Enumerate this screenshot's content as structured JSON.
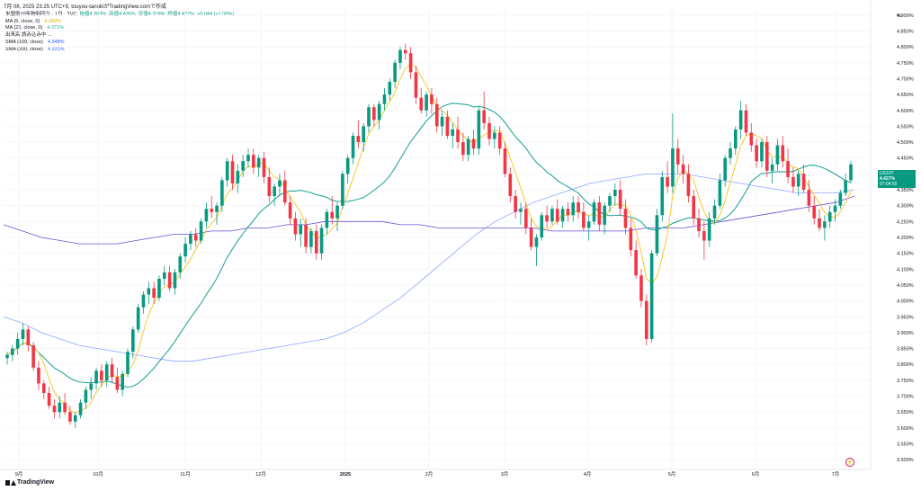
{
  "header": {
    "timestamp": "7月 08, 2025  23:25 UTC+9,",
    "author": "touyou-tanuki",
    "published_on": "がTradingView.comで作成"
  },
  "symbol_line": {
    "symbol": "米国債10年物利回り · 1日 · TVC",
    "open": "始値4.383%",
    "high": "高値4.435%",
    "low": "安値4.379%",
    "close": "終値4.427%",
    "change": "+0.044 (+1.00%)"
  },
  "indicators": [
    {
      "label": "MA (5, close, 0)",
      "value": "4.350%",
      "color": "#f5c518"
    },
    {
      "label": "MA (25, close, 0)",
      "value": "4.371%",
      "color": "#26a69a"
    },
    {
      "label": "出来高 読み込み中 ...",
      "value": "",
      "color": "#131722"
    },
    {
      "label": "SMA (100, close)",
      "value": "4.348%",
      "color": "#2962ff"
    },
    {
      "label": "SMA (200, close)",
      "value": "4.331%",
      "color": "#5b2fd6"
    }
  ],
  "price_tag": {
    "symbol": "US10Y",
    "price": "4.427%",
    "countdown": "07:04:55"
  },
  "unit": "%",
  "branding": {
    "logo_text": "TradingView"
  },
  "goto_realtime_icon": "lightning-icon",
  "colors": {
    "up": "#089981",
    "down": "#f23645",
    "ma5": "#f5c518",
    "ma25": "#26a69a",
    "sma100": "#2962ff",
    "sma200": "#5b2fd6",
    "grid": "#eef0f3"
  },
  "chart_data": {
    "type": "candlestick",
    "y_axis": {
      "min": 3.5,
      "max": 4.9,
      "step": 0.05,
      "unit": "%",
      "tick_labels": [
        "4.900%",
        "4.850%",
        "4.800%",
        "4.750%",
        "4.700%",
        "4.650%",
        "4.600%",
        "4.550%",
        "4.500%",
        "4.450%",
        "4.400%",
        "4.350%",
        "4.300%",
        "4.250%",
        "4.200%",
        "4.150%",
        "4.100%",
        "4.050%",
        "4.000%",
        "3.950%",
        "3.900%",
        "3.850%",
        "3.800%",
        "3.750%",
        "3.700%",
        "3.650%",
        "3.600%",
        "3.550%",
        "3.500%"
      ]
    },
    "x_axis": {
      "labels": [
        "9月",
        "10月",
        "11月",
        "12月",
        "2025",
        "2月",
        "3月",
        "4月",
        "5月",
        "6月",
        "7月"
      ],
      "label_positions": [
        21,
        109,
        206,
        290,
        384,
        477,
        561,
        653,
        747,
        840,
        929
      ]
    },
    "grid": true,
    "candles": [
      [
        3.82,
        3.84,
        3.8,
        3.83
      ],
      [
        3.83,
        3.86,
        3.81,
        3.85
      ],
      [
        3.85,
        3.9,
        3.83,
        3.88
      ],
      [
        3.88,
        3.93,
        3.86,
        3.91
      ],
      [
        3.91,
        3.92,
        3.84,
        3.86
      ],
      [
        3.86,
        3.87,
        3.78,
        3.79
      ],
      [
        3.79,
        3.81,
        3.72,
        3.74
      ],
      [
        3.74,
        3.75,
        3.69,
        3.71
      ],
      [
        3.71,
        3.73,
        3.66,
        3.67
      ],
      [
        3.67,
        3.69,
        3.63,
        3.65
      ],
      [
        3.65,
        3.7,
        3.63,
        3.68
      ],
      [
        3.68,
        3.71,
        3.64,
        3.65
      ],
      [
        3.65,
        3.67,
        3.61,
        3.62
      ],
      [
        3.62,
        3.65,
        3.6,
        3.64
      ],
      [
        3.64,
        3.69,
        3.63,
        3.68
      ],
      [
        3.68,
        3.73,
        3.66,
        3.72
      ],
      [
        3.72,
        3.76,
        3.69,
        3.74
      ],
      [
        3.74,
        3.79,
        3.72,
        3.78
      ],
      [
        3.78,
        3.8,
        3.73,
        3.75
      ],
      [
        3.75,
        3.81,
        3.73,
        3.8
      ],
      [
        3.8,
        3.82,
        3.74,
        3.76
      ],
      [
        3.76,
        3.79,
        3.71,
        3.72
      ],
      [
        3.72,
        3.78,
        3.7,
        3.77
      ],
      [
        3.77,
        3.85,
        3.76,
        3.84
      ],
      [
        3.84,
        3.92,
        3.82,
        3.91
      ],
      [
        3.91,
        3.99,
        3.9,
        3.98
      ],
      [
        3.98,
        4.03,
        3.96,
        4.02
      ],
      [
        4.02,
        4.06,
        3.99,
        4.04
      ],
      [
        4.04,
        4.06,
        3.99,
        4.01
      ],
      [
        4.01,
        4.08,
        4.0,
        4.07
      ],
      [
        4.07,
        4.11,
        4.05,
        4.09
      ],
      [
        4.09,
        4.11,
        4.03,
        4.04
      ],
      [
        4.04,
        4.1,
        4.02,
        4.09
      ],
      [
        4.09,
        4.15,
        4.07,
        4.14
      ],
      [
        4.14,
        4.2,
        4.12,
        4.18
      ],
      [
        4.18,
        4.22,
        4.16,
        4.21
      ],
      [
        4.21,
        4.23,
        4.17,
        4.19
      ],
      [
        4.19,
        4.26,
        4.18,
        4.25
      ],
      [
        4.25,
        4.31,
        4.23,
        4.29
      ],
      [
        4.29,
        4.33,
        4.26,
        4.28
      ],
      [
        4.28,
        4.31,
        4.24,
        4.3
      ],
      [
        4.3,
        4.39,
        4.28,
        4.38
      ],
      [
        4.38,
        4.45,
        4.36,
        4.44
      ],
      [
        4.44,
        4.46,
        4.35,
        4.37
      ],
      [
        4.37,
        4.43,
        4.34,
        4.41
      ],
      [
        4.41,
        4.46,
        4.39,
        4.44
      ],
      [
        4.44,
        4.48,
        4.42,
        4.46
      ],
      [
        4.46,
        4.48,
        4.4,
        4.42
      ],
      [
        4.42,
        4.46,
        4.39,
        4.45
      ],
      [
        4.45,
        4.47,
        4.37,
        4.39
      ],
      [
        4.39,
        4.42,
        4.31,
        4.33
      ],
      [
        4.33,
        4.37,
        4.3,
        4.36
      ],
      [
        4.36,
        4.4,
        4.33,
        4.38
      ],
      [
        4.38,
        4.41,
        4.3,
        4.31
      ],
      [
        4.31,
        4.33,
        4.24,
        4.26
      ],
      [
        4.26,
        4.28,
        4.19,
        4.21
      ],
      [
        4.21,
        4.26,
        4.17,
        4.24
      ],
      [
        4.24,
        4.26,
        4.15,
        4.17
      ],
      [
        4.17,
        4.23,
        4.15,
        4.22
      ],
      [
        4.22,
        4.24,
        4.13,
        4.15
      ],
      [
        4.15,
        4.24,
        4.13,
        4.23
      ],
      [
        4.23,
        4.29,
        4.21,
        4.28
      ],
      [
        4.28,
        4.33,
        4.24,
        4.26
      ],
      [
        4.26,
        4.31,
        4.22,
        4.3
      ],
      [
        4.3,
        4.41,
        4.29,
        4.4
      ],
      [
        4.4,
        4.46,
        4.37,
        4.45
      ],
      [
        4.45,
        4.53,
        4.43,
        4.52
      ],
      [
        4.52,
        4.57,
        4.48,
        4.5
      ],
      [
        4.5,
        4.56,
        4.47,
        4.55
      ],
      [
        4.55,
        4.62,
        4.53,
        4.61
      ],
      [
        4.61,
        4.62,
        4.55,
        4.57
      ],
      [
        4.57,
        4.63,
        4.54,
        4.62
      ],
      [
        4.62,
        4.67,
        4.6,
        4.65
      ],
      [
        4.65,
        4.7,
        4.63,
        4.69
      ],
      [
        4.69,
        4.76,
        4.67,
        4.75
      ],
      [
        4.75,
        4.8,
        4.73,
        4.79
      ],
      [
        4.79,
        4.81,
        4.76,
        4.78
      ],
      [
        4.78,
        4.8,
        4.7,
        4.72
      ],
      [
        4.72,
        4.74,
        4.62,
        4.64
      ],
      [
        4.64,
        4.67,
        4.59,
        4.6
      ],
      [
        4.6,
        4.66,
        4.58,
        4.65
      ],
      [
        4.65,
        4.67,
        4.59,
        4.62
      ],
      [
        4.62,
        4.64,
        4.53,
        4.55
      ],
      [
        4.55,
        4.6,
        4.52,
        4.58
      ],
      [
        4.58,
        4.6,
        4.51,
        4.52
      ],
      [
        4.52,
        4.56,
        4.48,
        4.54
      ],
      [
        4.54,
        4.58,
        4.48,
        4.5
      ],
      [
        4.5,
        4.53,
        4.44,
        4.46
      ],
      [
        4.46,
        4.52,
        4.44,
        4.51
      ],
      [
        4.51,
        4.54,
        4.46,
        4.48
      ],
      [
        4.48,
        4.61,
        4.46,
        4.6
      ],
      [
        4.6,
        4.66,
        4.54,
        4.56
      ],
      [
        4.56,
        4.58,
        4.49,
        4.51
      ],
      [
        4.51,
        4.55,
        4.48,
        4.53
      ],
      [
        4.53,
        4.55,
        4.46,
        4.48
      ],
      [
        4.48,
        4.5,
        4.39,
        4.4
      ],
      [
        4.4,
        4.42,
        4.31,
        4.33
      ],
      [
        4.33,
        4.35,
        4.26,
        4.28
      ],
      [
        4.28,
        4.31,
        4.24,
        4.29
      ],
      [
        4.29,
        4.31,
        4.21,
        4.23
      ],
      [
        4.23,
        4.26,
        4.16,
        4.17
      ],
      [
        4.17,
        4.21,
        4.11,
        4.2
      ],
      [
        4.2,
        4.28,
        4.19,
        4.27
      ],
      [
        4.27,
        4.3,
        4.23,
        4.25
      ],
      [
        4.25,
        4.3,
        4.24,
        4.29
      ],
      [
        4.29,
        4.32,
        4.24,
        4.25
      ],
      [
        4.25,
        4.3,
        4.23,
        4.29
      ],
      [
        4.29,
        4.31,
        4.25,
        4.27
      ],
      [
        4.27,
        4.33,
        4.25,
        4.31
      ],
      [
        4.31,
        4.33,
        4.26,
        4.28
      ],
      [
        4.28,
        4.31,
        4.22,
        4.23
      ],
      [
        4.23,
        4.27,
        4.19,
        4.25
      ],
      [
        4.25,
        4.32,
        4.24,
        4.31
      ],
      [
        4.31,
        4.33,
        4.22,
        4.24
      ],
      [
        4.24,
        4.31,
        4.21,
        4.3
      ],
      [
        4.3,
        4.34,
        4.28,
        4.33
      ],
      [
        4.33,
        4.37,
        4.3,
        4.35
      ],
      [
        4.35,
        4.38,
        4.27,
        4.29
      ],
      [
        4.29,
        4.32,
        4.21,
        4.23
      ],
      [
        4.23,
        4.26,
        4.14,
        4.16
      ],
      [
        4.16,
        4.19,
        4.07,
        4.08
      ],
      [
        4.08,
        4.1,
        3.98,
        4.0
      ],
      [
        4.0,
        4.02,
        3.86,
        3.88
      ],
      [
        3.88,
        4.16,
        3.87,
        4.15
      ],
      [
        4.15,
        4.29,
        4.14,
        4.27
      ],
      [
        4.27,
        4.41,
        4.25,
        4.39
      ],
      [
        4.39,
        4.44,
        4.34,
        4.36
      ],
      [
        4.36,
        4.59,
        4.34,
        4.48
      ],
      [
        4.48,
        4.51,
        4.4,
        4.43
      ],
      [
        4.43,
        4.46,
        4.37,
        4.4
      ],
      [
        4.4,
        4.43,
        4.31,
        4.33
      ],
      [
        4.33,
        4.35,
        4.24,
        4.26
      ],
      [
        4.26,
        4.29,
        4.2,
        4.22
      ],
      [
        4.22,
        4.25,
        4.13,
        4.19
      ],
      [
        4.19,
        4.28,
        4.17,
        4.26
      ],
      [
        4.26,
        4.32,
        4.24,
        4.3
      ],
      [
        4.3,
        4.4,
        4.29,
        4.38
      ],
      [
        4.38,
        4.46,
        4.36,
        4.45
      ],
      [
        4.45,
        4.5,
        4.43,
        4.48
      ],
      [
        4.48,
        4.55,
        4.46,
        4.54
      ],
      [
        4.54,
        4.63,
        4.51,
        4.6
      ],
      [
        4.6,
        4.62,
        4.52,
        4.53
      ],
      [
        4.53,
        4.56,
        4.47,
        4.49
      ],
      [
        4.49,
        4.51,
        4.42,
        4.44
      ],
      [
        4.44,
        4.51,
        4.42,
        4.5
      ],
      [
        4.5,
        4.52,
        4.39,
        4.41
      ],
      [
        4.41,
        4.45,
        4.37,
        4.43
      ],
      [
        4.43,
        4.51,
        4.41,
        4.49
      ],
      [
        4.49,
        4.52,
        4.42,
        4.44
      ],
      [
        4.44,
        4.48,
        4.37,
        4.39
      ],
      [
        4.39,
        4.42,
        4.34,
        4.36
      ],
      [
        4.36,
        4.41,
        4.33,
        4.4
      ],
      [
        4.4,
        4.43,
        4.34,
        4.35
      ],
      [
        4.35,
        4.38,
        4.28,
        4.3
      ],
      [
        4.3,
        4.33,
        4.24,
        4.26
      ],
      [
        4.26,
        4.29,
        4.22,
        4.23
      ],
      [
        4.23,
        4.27,
        4.19,
        4.25
      ],
      [
        4.25,
        4.3,
        4.23,
        4.28
      ],
      [
        4.28,
        4.32,
        4.25,
        4.3
      ],
      [
        4.3,
        4.35,
        4.29,
        4.34
      ],
      [
        4.34,
        4.4,
        4.33,
        4.38
      ],
      [
        4.38,
        4.44,
        4.37,
        4.43
      ]
    ],
    "series": [
      {
        "name": "MA (5, close, 0)",
        "key": "ma5"
      },
      {
        "name": "MA (25, close, 0)",
        "key": "ma25"
      },
      {
        "name": "SMA (100, close)",
        "key": "sma100"
      },
      {
        "name": "SMA (200, close)",
        "key": "sma200"
      }
    ],
    "sma100_values": [
      3.95,
      3.93,
      3.9,
      3.88,
      3.86,
      3.85,
      3.84,
      3.83,
      3.82,
      3.81,
      3.81,
      3.82,
      3.83,
      3.84,
      3.85,
      3.86,
      3.87,
      3.88,
      3.9,
      3.93,
      3.97,
      4.01,
      4.06,
      4.11,
      4.16,
      4.21,
      4.25,
      4.28,
      4.31,
      4.33,
      4.35,
      4.37,
      4.38,
      4.39,
      4.4,
      4.4,
      4.4,
      4.39,
      4.38,
      4.37,
      4.36,
      4.35,
      4.34,
      4.34,
      4.34,
      4.35
    ],
    "sma200_values": [
      4.24,
      4.22,
      4.2,
      4.19,
      4.18,
      4.18,
      4.18,
      4.19,
      4.2,
      4.21,
      4.21,
      4.22,
      4.22,
      4.23,
      4.23,
      4.24,
      4.24,
      4.25,
      4.25,
      4.25,
      4.25,
      4.24,
      4.24,
      4.23,
      4.23,
      4.23,
      4.23,
      4.23,
      4.23,
      4.22,
      4.22,
      4.22,
      4.22,
      4.22,
      4.23,
      4.23,
      4.23,
      4.24,
      4.25,
      4.26,
      4.27,
      4.28,
      4.29,
      4.3,
      4.31,
      4.33
    ]
  }
}
